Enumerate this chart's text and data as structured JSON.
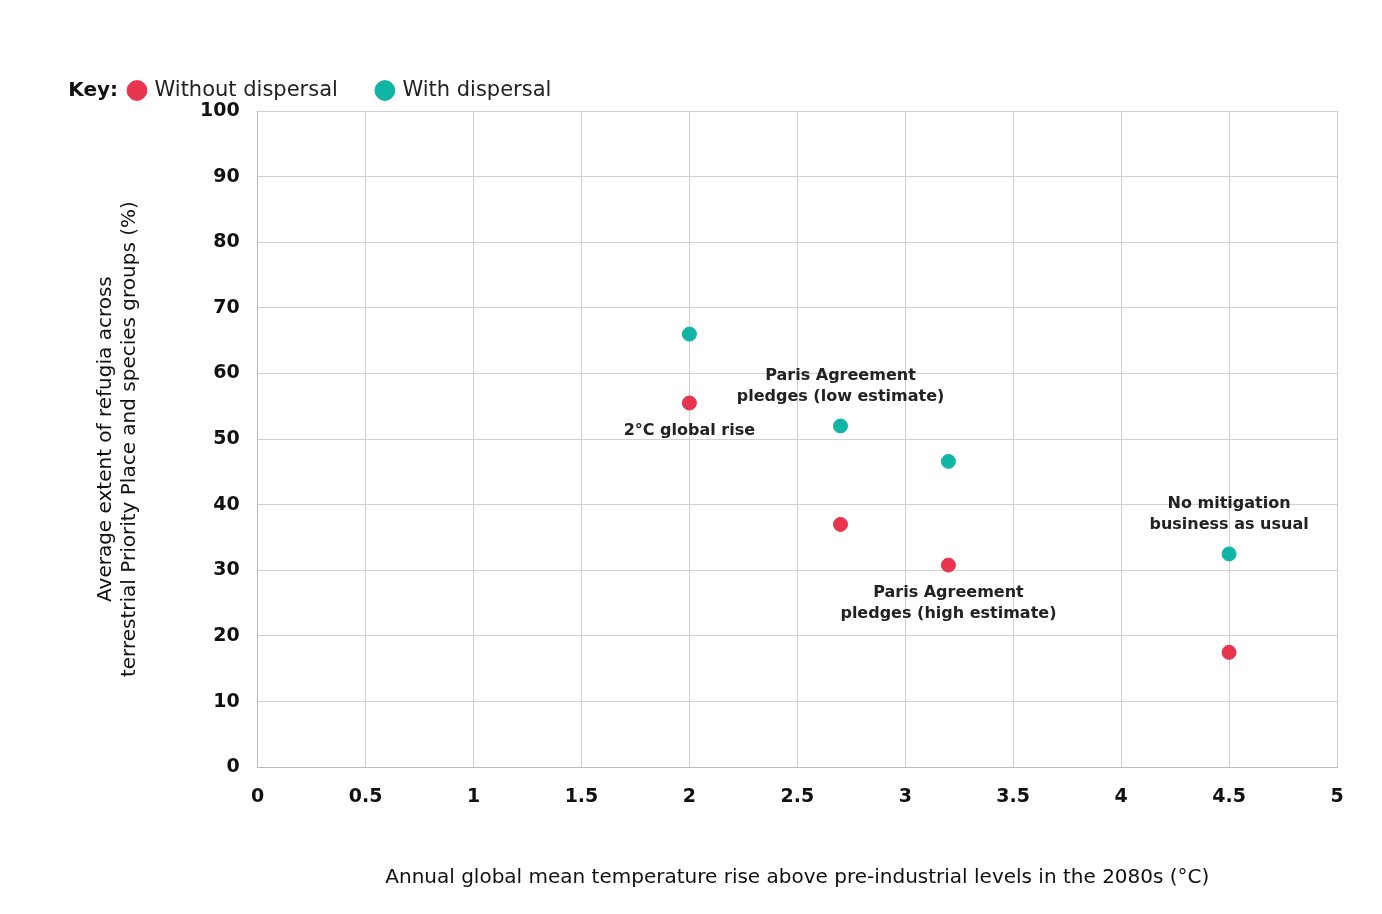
{
  "chart_data": {
    "type": "scatter",
    "xlabel": "Annual global mean temperature rise above pre-industrial levels in the 2080s (°C)",
    "ylabel": "Average extent of refugia across terrestrial Priority Place and species groups (%)",
    "legend_title": "Key:",
    "legend": "top left",
    "grid": true,
    "marker": "circle",
    "x": [
      2,
      2.7,
      3.2,
      4.5
    ],
    "series": [
      {
        "name": "Without dispersal",
        "color": "#e8344e",
        "values": [
          55.5,
          37,
          30.8,
          17.5
        ]
      },
      {
        "name": "With dispersal",
        "color": "#10b5a5",
        "values": [
          66,
          52,
          46.6,
          32.5
        ]
      }
    ],
    "xlim": [
      0,
      5
    ],
    "xticks": [
      0,
      0.5,
      1,
      1.5,
      2,
      2.5,
      3,
      3.5,
      4,
      4.5,
      5
    ],
    "ylim": [
      0,
      100
    ],
    "yticks": [
      0,
      10,
      20,
      30,
      40,
      50,
      60,
      70,
      80,
      90,
      100
    ],
    "annotations": [
      {
        "text": "2°C global rise",
        "x": 2,
        "y": 55.5
      },
      {
        "text": "Paris Agreement pledges (low estimate)",
        "x": 2.7,
        "y": 52
      },
      {
        "text": "Paris Agreement pledges (high estimate)",
        "x": 3.2,
        "y": 30.8
      },
      {
        "text": "No mitigation business as usual",
        "x": 4.5,
        "y": 32.5
      }
    ]
  }
}
